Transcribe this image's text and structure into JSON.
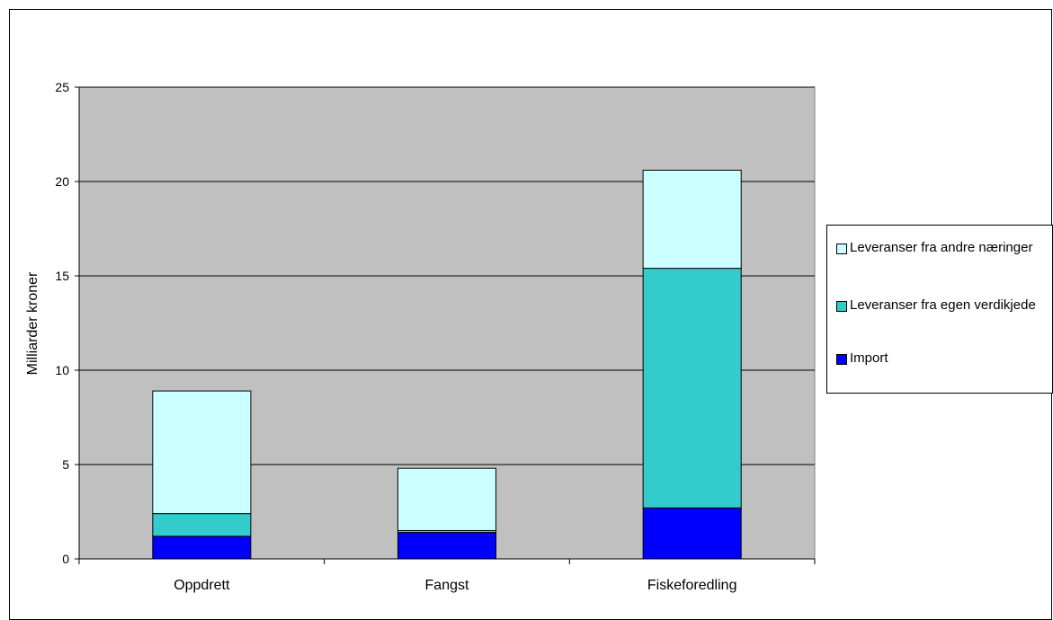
{
  "chart_data": {
    "type": "bar",
    "stacked": true,
    "categories": [
      "Oppdrett",
      "Fangst",
      "Fiskeforedling"
    ],
    "series": [
      {
        "name": "Import",
        "color": "#0000ff",
        "values": [
          1.2,
          1.4,
          2.7
        ]
      },
      {
        "name": "Leveranser fra egen verdikjede",
        "color": "#33cccc",
        "values": [
          1.2,
          0.1,
          12.7
        ]
      },
      {
        "name": "Leveranser fra andre næringer",
        "color": "#ccffff",
        "values": [
          6.5,
          3.3,
          5.2
        ]
      }
    ],
    "title": "",
    "xlabel": "",
    "ylabel": "Milliarder kroner",
    "ylim": [
      0,
      25
    ],
    "yticks": [
      0,
      5,
      10,
      15,
      20,
      25
    ],
    "grid": true,
    "plot_background": "#c0c0c0",
    "legend_placement": "right"
  }
}
